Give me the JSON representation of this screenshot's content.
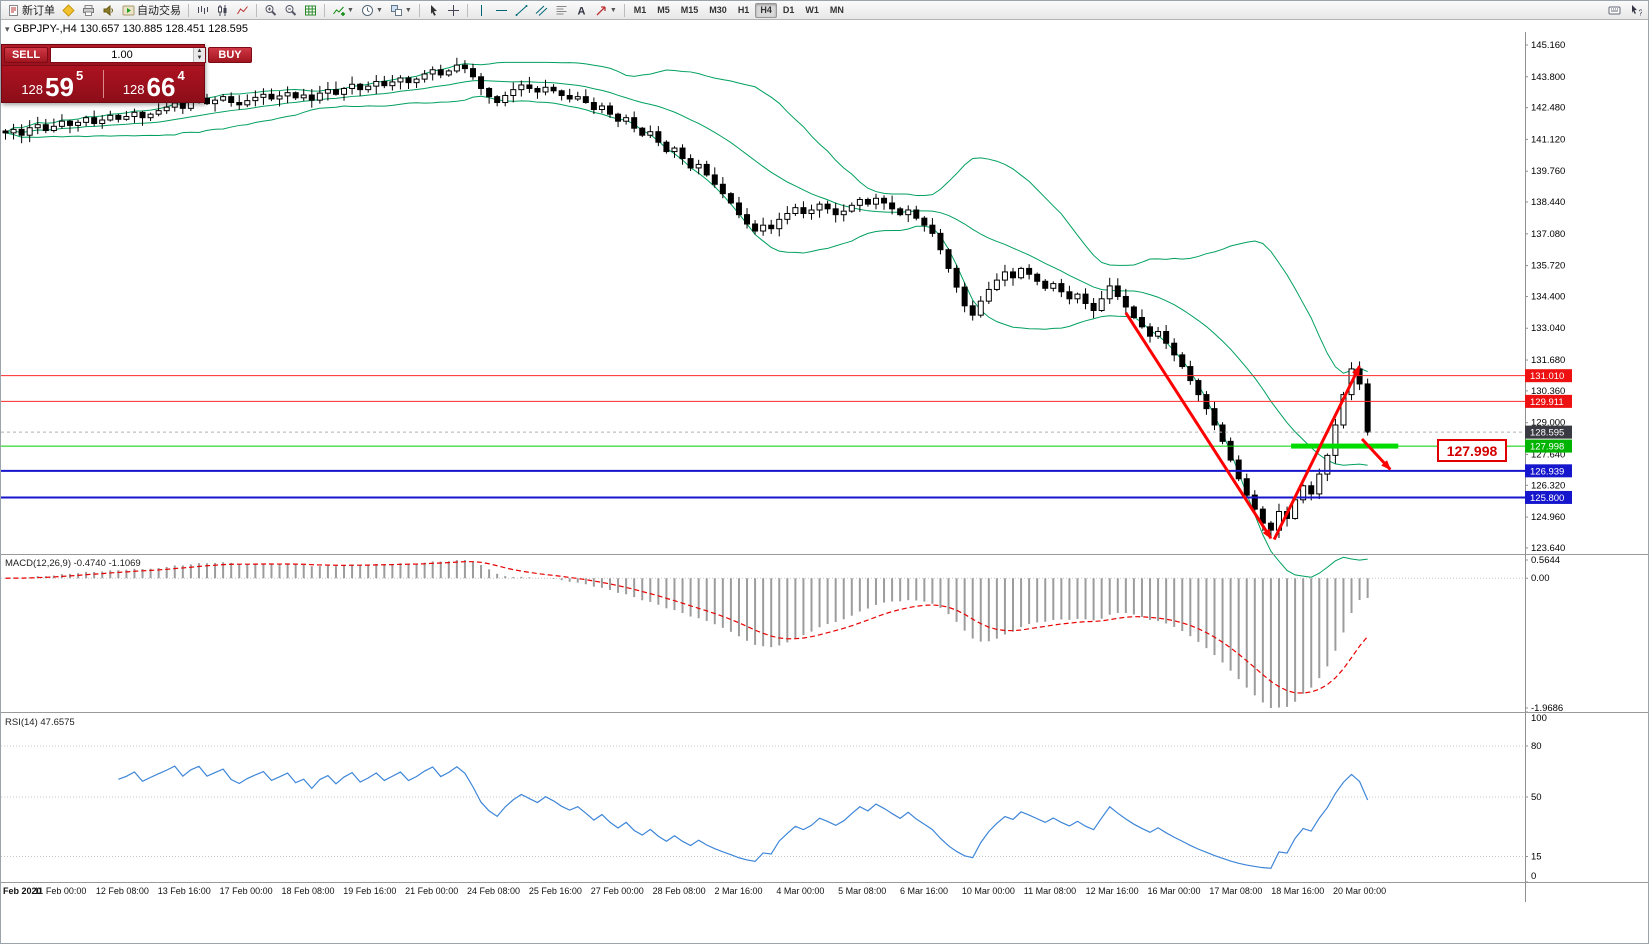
{
  "toolbar": {
    "groups": [
      {
        "items": [
          {
            "name": "new-order-button",
            "icon": "doc",
            "label": "新订单"
          },
          {
            "name": "profiles-button",
            "icon": "diamond"
          },
          {
            "name": "print-button",
            "icon": "printer"
          },
          {
            "name": "broadcast-button",
            "icon": "speaker"
          },
          {
            "name": "auto-trading-button",
            "icon": "play",
            "label": "自动交易"
          }
        ]
      },
      {
        "items": [
          {
            "name": "bar-chart-button",
            "icon": "bars"
          },
          {
            "name": "candlestick-chart-button",
            "icon": "candles"
          },
          {
            "name": "line-chart-button",
            "icon": "linechart"
          }
        ]
      },
      {
        "items": [
          {
            "name": "zoom-in-button",
            "icon": "zoomin"
          },
          {
            "name": "zoom-out-button",
            "icon": "zoomout"
          },
          {
            "name": "grid-button",
            "icon": "grid"
          }
        ]
      },
      {
        "items": [
          {
            "name": "indicators-button",
            "icon": "indicators",
            "dropdown": true
          },
          {
            "name": "period-button",
            "icon": "clock",
            "dropdown": true
          },
          {
            "name": "templates-button",
            "icon": "tile",
            "dropdown": true
          }
        ]
      },
      {
        "items": [
          {
            "name": "cursor-button",
            "icon": "cursor"
          },
          {
            "name": "crosshair-button",
            "icon": "crosshair"
          }
        ]
      },
      {
        "items": [
          {
            "name": "vertical-line-button",
            "icon": "vline"
          },
          {
            "name": "horizontal-line-button",
            "icon": "hline"
          },
          {
            "name": "trendline-button",
            "icon": "tline"
          },
          {
            "name": "channel-button",
            "icon": "channel"
          },
          {
            "name": "fibonacci-button",
            "icon": "fibo"
          },
          {
            "name": "text-button",
            "icon": "textA"
          },
          {
            "name": "arrows-button",
            "icon": "arrows",
            "dropdown": true
          }
        ]
      }
    ],
    "timeframes": {
      "items": [
        "M1",
        "M5",
        "M15",
        "M30",
        "H1",
        "H4",
        "D1",
        "W1",
        "MN"
      ],
      "active": "H4"
    },
    "right_items": [
      {
        "name": "docking-button",
        "icon": "keyboard"
      },
      {
        "name": "help-button",
        "icon": "helpcursor"
      }
    ]
  },
  "chart": {
    "info_line": "GBPJPY-,H4 130.657 130.885 128.451 128.595",
    "trade_panel": {
      "sell_label": "SELL",
      "buy_label": "BUY",
      "volume": "1.00",
      "bid": {
        "big": "128",
        "pips": "59",
        "point": "5"
      },
      "ask": {
        "big": "128",
        "pips": "66",
        "point": "4"
      }
    },
    "hlines": [
      {
        "value": 131.01,
        "color": "#ff2a2a",
        "width": 1
      },
      {
        "value": 129.911,
        "color": "#ff2a2a",
        "width": 1
      },
      {
        "value": 127.998,
        "color": "#00cc00",
        "width": 1
      },
      {
        "value": 126.939,
        "color": "#1616cc",
        "width": 2
      },
      {
        "value": 125.8,
        "color": "#1616cc",
        "width": 2
      }
    ],
    "price_tags": [
      {
        "text": "131.010",
        "value": 131.01,
        "color": "#ee1111"
      },
      {
        "text": "129.911",
        "value": 129.911,
        "color": "#ee1111"
      },
      {
        "text": "128.595",
        "value": 128.595,
        "color": "#3a3a42"
      },
      {
        "text": "127.998",
        "value": 127.998,
        "color": "#00b400"
      },
      {
        "text": "126.939",
        "value": 126.939,
        "color": "#1616cc"
      },
      {
        "text": "125.800",
        "value": 125.8,
        "color": "#1616cc"
      }
    ],
    "current_price": 128.595,
    "green_segment": {
      "price": 127.998,
      "from_index": 159.5,
      "to_index": 172.8,
      "color": "#00dc00"
    },
    "arrow_color": "#ff0000",
    "arrows": [
      {
        "from": [
          139,
          133.7
        ],
        "to": [
          157,
          124.05
        ]
      },
      {
        "from": [
          157.4,
          124.0
        ],
        "to": [
          168,
          131.42
        ]
      },
      {
        "from": [
          168.3,
          128.3
        ],
        "to": [
          171.8,
          127.0
        ]
      }
    ],
    "callout": {
      "text": "127.998"
    }
  },
  "chart_data": {
    "type": "candlestick",
    "symbol": "GBPJPY-",
    "timeframe": "H4",
    "ohlc_display": {
      "open": "130.657",
      "high": "130.885",
      "low": "128.451",
      "close": "128.595"
    },
    "ylim": [
      123.64,
      145.16
    ],
    "closes": [
      141.4,
      141.55,
      141.3,
      141.62,
      141.75,
      141.5,
      141.68,
      141.9,
      141.72,
      141.85,
      142.05,
      141.8,
      141.95,
      142.15,
      141.98,
      142.1,
      142.28,
      142.05,
      142.2,
      142.35,
      142.5,
      142.68,
      142.45,
      142.72,
      142.88,
      142.65,
      142.8,
      142.95,
      142.7,
      142.6,
      142.78,
      142.92,
      143.05,
      142.85,
      142.98,
      143.12,
      142.9,
      143.02,
      142.8,
      143.1,
      143.25,
      143.05,
      143.3,
      143.48,
      143.25,
      143.4,
      143.6,
      143.42,
      143.58,
      143.75,
      143.55,
      143.7,
      143.92,
      144.1,
      143.88,
      144.05,
      144.3,
      144.15,
      143.8,
      143.3,
      142.95,
      142.7,
      143.0,
      143.25,
      143.45,
      143.3,
      143.15,
      143.35,
      143.2,
      143.0,
      142.85,
      142.95,
      142.7,
      142.4,
      142.55,
      142.2,
      141.9,
      142.05,
      141.6,
      141.3,
      141.45,
      141.0,
      140.6,
      140.75,
      140.3,
      139.9,
      140.05,
      139.6,
      139.2,
      138.8,
      138.4,
      137.9,
      137.5,
      137.2,
      137.45,
      137.3,
      137.7,
      137.95,
      138.2,
      137.95,
      138.1,
      138.35,
      138.15,
      137.9,
      138.05,
      138.3,
      138.55,
      138.35,
      138.6,
      138.4,
      138.15,
      137.9,
      138.1,
      137.75,
      137.45,
      137.1,
      136.4,
      135.6,
      134.8,
      134.0,
      133.6,
      134.2,
      134.7,
      135.1,
      135.45,
      135.2,
      135.6,
      135.35,
      135.05,
      134.75,
      134.95,
      134.6,
      134.3,
      134.5,
      134.1,
      133.8,
      134.3,
      134.85,
      134.4,
      133.95,
      133.5,
      133.1,
      132.7,
      132.9,
      132.4,
      131.9,
      131.4,
      130.8,
      130.2,
      129.6,
      128.9,
      128.2,
      127.4,
      126.6,
      125.9,
      125.3,
      124.7,
      124.4,
      125.2,
      124.9,
      125.7,
      126.3,
      125.95,
      126.8,
      127.6,
      128.9,
      130.2,
      131.3,
      130.657,
      128.595
    ],
    "last_candle": {
      "open": 130.657,
      "high": 130.885,
      "low": 128.451,
      "close": 128.595
    },
    "overrides": [
      {
        "index": 168,
        "high": 131.62
      }
    ],
    "price_ticks": [
      "145.160",
      "143.800",
      "142.480",
      "141.120",
      "139.760",
      "138.440",
      "137.080",
      "135.720",
      "134.400",
      "133.040",
      "131.680",
      "130.360",
      "129.000",
      "127.640",
      "126.320",
      "124.960",
      "123.640"
    ],
    "time_labels": [
      "Feb 2020",
      "11 Feb 00:00",
      "12 Feb 08:00",
      "13 Feb 16:00",
      "17 Feb 00:00",
      "18 Feb 08:00",
      "19 Feb 16:00",
      "21 Feb 00:00",
      "24 Feb 08:00",
      "25 Feb 16:00",
      "27 Feb 00:00",
      "28 Feb 08:00",
      "2 Mar 16:00",
      "4 Mar 00:00",
      "5 Mar 08:00",
      "6 Mar 16:00",
      "10 Mar 00:00",
      "11 Mar 08:00",
      "12 Mar 16:00",
      "16 Mar 00:00",
      "17 Mar 08:00",
      "18 Mar 16:00",
      "20 Mar 00:00"
    ],
    "indicators": {
      "bollinger": {
        "period": 20,
        "deviation": 2,
        "color": "#00a05e"
      },
      "macd": {
        "fast": 12,
        "slow": 26,
        "signal": 9,
        "histogram_color": "#9c9c9c",
        "signal_color": "#e80000"
      },
      "rsi": {
        "period": 14,
        "color": "#3e86d8"
      }
    },
    "macd": {
      "label": "MACD(12,26,9)",
      "values": "-0.4740 -1.1069",
      "axis": [
        "0.5644",
        "0.00",
        "-1.9686"
      ]
    },
    "rsi": {
      "label": "RSI(14)",
      "value": "47.6575",
      "levels": [
        80,
        50,
        15
      ],
      "axis": [
        "100",
        "80",
        "50",
        "15",
        "0"
      ]
    }
  }
}
